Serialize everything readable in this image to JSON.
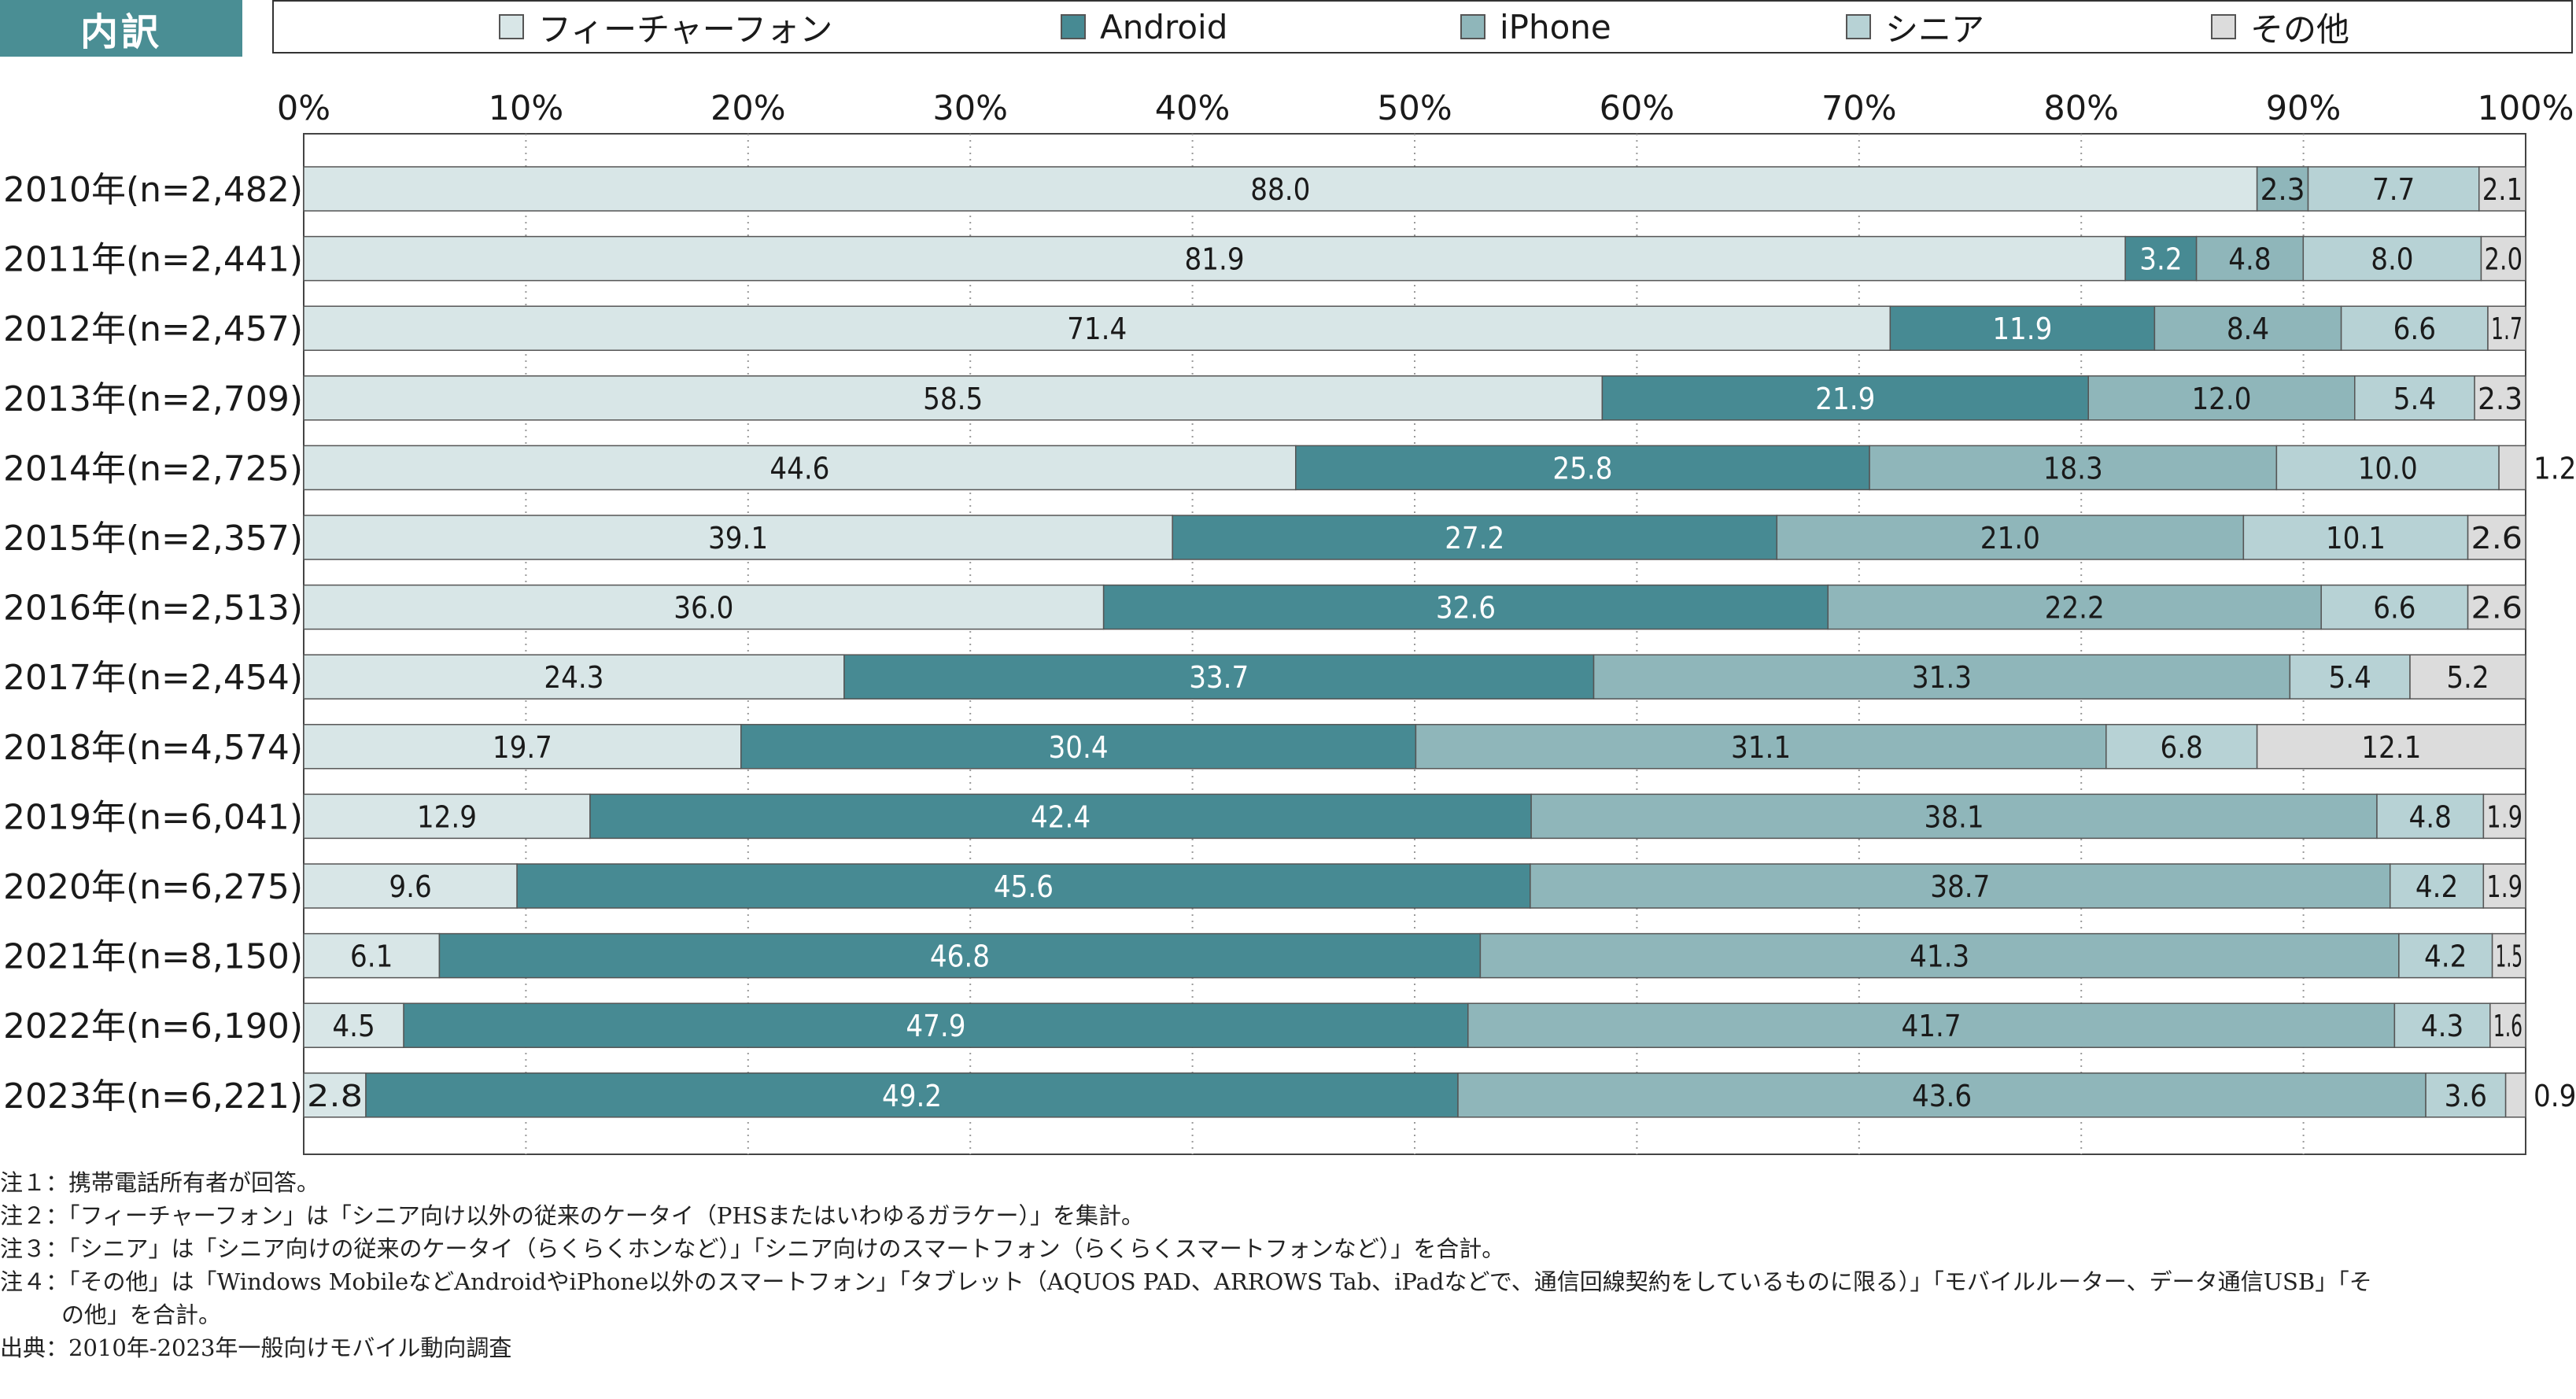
{
  "header": {
    "tag": "内訳",
    "legend": [
      {
        "label": "フィーチャーフォン",
        "color": "#d8e6e7"
      },
      {
        "label": "Android",
        "color": "#478a93"
      },
      {
        "label": "iPhone",
        "color": "#8fb6ba"
      },
      {
        "label": "シニア",
        "color": "#b7d2d5"
      },
      {
        "label": "その他",
        "color": "#dcdcdc"
      }
    ]
  },
  "chart_data": {
    "type": "bar",
    "orientation": "horizontal",
    "stacked": true,
    "xlim": [
      0,
      100
    ],
    "x_ticks": [
      "0%",
      "10%",
      "20%",
      "30%",
      "40%",
      "50%",
      "60%",
      "70%",
      "80%",
      "90%",
      "100%"
    ],
    "grid": "vertical dotted",
    "categories": [
      "2010年(n=2,482)",
      "2011年(n=2,441)",
      "2012年(n=2,457)",
      "2013年(n=2,709)",
      "2014年(n=2,725)",
      "2015年(n=2,357)",
      "2016年(n=2,513)",
      "2017年(n=2,454)",
      "2018年(n=4,574)",
      "2019年(n=6,041)",
      "2020年(n=6,275)",
      "2021年(n=8,150)",
      "2022年(n=6,190)",
      "2023年(n=6,221)"
    ],
    "series": [
      {
        "name": "フィーチャーフォン",
        "color": "#d8e6e7",
        "values": [
          88.0,
          81.9,
          71.4,
          58.5,
          44.6,
          39.1,
          36.0,
          24.3,
          19.7,
          12.9,
          9.6,
          6.1,
          4.5,
          2.8
        ],
        "labels": [
          "88.0",
          "81.9",
          "71.4",
          "58.5",
          "44.6",
          "39.1",
          "36.0",
          "24.3",
          "19.7",
          "12.9",
          "9.6",
          "6.1",
          "4.5",
          "2.8"
        ]
      },
      {
        "name": "Android",
        "color": "#478a93",
        "values": [
          0,
          3.2,
          11.9,
          21.9,
          25.8,
          27.2,
          32.6,
          33.7,
          30.4,
          42.4,
          45.6,
          46.8,
          47.9,
          49.2
        ],
        "labels": [
          "",
          "3.2",
          "11.9",
          "21.9",
          "25.8",
          "27.2",
          "32.6",
          "33.7",
          "30.4",
          "42.4",
          "45.6",
          "46.8",
          "47.9",
          "49.2"
        ]
      },
      {
        "name": "iPhone",
        "color": "#8fb6ba",
        "values": [
          2.3,
          4.8,
          8.4,
          12.0,
          18.3,
          21.0,
          22.2,
          31.3,
          31.1,
          38.1,
          38.7,
          41.3,
          41.7,
          43.6
        ],
        "labels": [
          "2.3",
          "4.8",
          "8.4",
          "12.0",
          "18.3",
          "21.0",
          "22.2",
          "31.3",
          "31.1",
          "38.1",
          "38.7",
          "41.3",
          "41.7",
          "43.6"
        ]
      },
      {
        "name": "シニア",
        "color": "#b7d2d5",
        "values": [
          7.7,
          8.0,
          6.6,
          5.4,
          10.0,
          10.1,
          6.6,
          5.4,
          6.8,
          4.8,
          4.2,
          4.2,
          4.3,
          3.6
        ],
        "labels": [
          "7.7",
          "8.0",
          "6.6",
          "5.4",
          "10.0",
          "10.1",
          "6.6",
          "5.4",
          "6.8",
          "4.8",
          "4.2",
          "4.2",
          "4.3",
          "3.6"
        ]
      },
      {
        "name": "その他",
        "color": "#dcdcdc",
        "values": [
          2.1,
          2.0,
          1.7,
          2.3,
          1.2,
          2.6,
          2.6,
          5.2,
          12.1,
          1.9,
          1.9,
          1.5,
          1.6,
          0.9
        ],
        "labels": [
          "2.1",
          "2.0",
          "1.7",
          "2.3",
          "1.2",
          "2.6",
          "2.6",
          "5.2",
          "12.1",
          "1.9",
          "1.9",
          "1.5",
          "1.6",
          "0.9"
        ]
      }
    ]
  },
  "notes": {
    "n1": "注１：携帯電話所有者が回答。",
    "n2": "注２：「フィーチャーフォン」は「シニア向け以外の従来のケータイ（PHSまたはいわゆるガラケー）」を集計。",
    "n3": "注３：「シニア」は「シニア向けの従来のケータイ（らくらくホンなど）」「シニア向けのスマートフォン（らくらくスマートフォンなど）」を合計。",
    "n4a": "注４：「その他」は「Windows MobileなどAndroidやiPhone以外のスマートフォン」「タブレット（AQUOS PAD、ARROWS Tab、iPadなどで、通信回線契約をしているものに限る）」「モバイルルーター、データ通信USB」「そ",
    "n4b": "の他」を合計。",
    "source": "出典：2010年-2023年一般向けモバイル動向調査"
  }
}
